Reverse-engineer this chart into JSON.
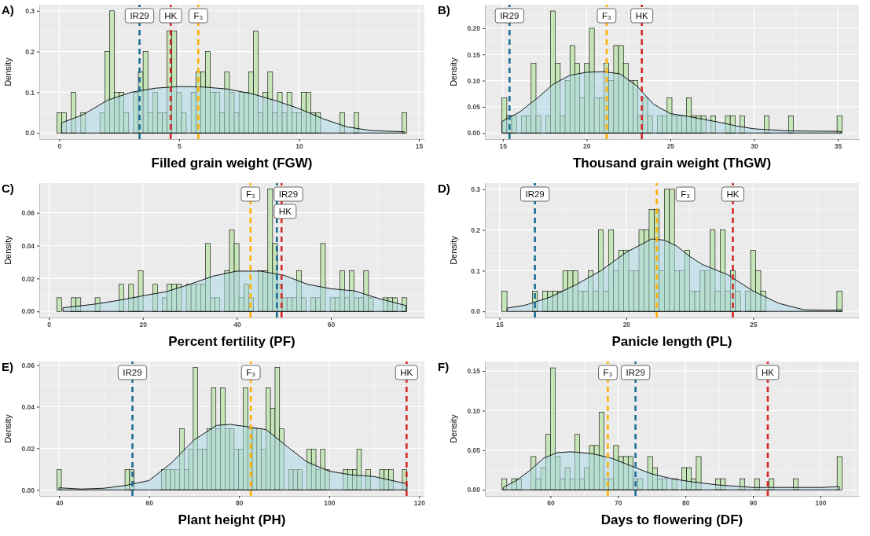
{
  "chart_data": [
    {
      "type": "histogram",
      "title": "A)",
      "xlabel": "Filled grain weight (FGW)",
      "ylabel": "Density",
      "color": "#c6e5b8",
      "grid": true,
      "xlim": [
        -0.83,
        15.23
      ],
      "xticks": [
        0,
        5,
        10,
        15
      ],
      "ylim": [
        -0.015,
        0.315
      ],
      "yticks": [
        {
          "value": 0,
          "label": "0.0"
        },
        0.1,
        0.2,
        0.3
      ],
      "bins": [
        -0.1,
        0.1,
        0.3,
        0.5,
        0.7,
        0.9,
        1.1,
        1.3,
        1.5,
        1.7,
        1.9,
        2.1,
        2.3,
        2.5,
        2.7,
        2.9,
        3.1,
        3.3,
        3.5,
        3.7,
        3.9,
        4.1,
        4.3,
        4.5,
        4.7,
        4.9,
        5.1,
        5.3,
        5.5,
        5.7,
        5.9,
        6.1,
        6.3,
        6.5,
        6.7,
        6.9,
        7.1,
        7.3,
        7.5,
        7.7,
        7.9,
        8.1,
        8.3,
        8.5,
        8.7,
        8.9,
        9.1,
        9.3,
        9.5,
        9.7,
        9.9,
        10.1,
        10.3,
        10.5,
        10.7,
        10.9,
        11.1,
        11.3,
        11.5,
        11.7,
        11.9,
        12.1,
        12.3,
        12.5,
        12.7,
        12.9,
        13.1,
        13.3,
        13.5,
        13.7,
        13.9,
        14.1,
        14.3,
        14.5
      ],
      "values": [
        0.05,
        0.05,
        0,
        0.1,
        0,
        0.05,
        0,
        0,
        0,
        0.05,
        0.2,
        0.3,
        0.1,
        0.1,
        0.05,
        0,
        0.1,
        0.15,
        0.2,
        0.05,
        0.1,
        0.05,
        0.05,
        0.25,
        0.25,
        0.1,
        0.05,
        0,
        0.1,
        0.15,
        0.15,
        0.2,
        0.1,
        0.1,
        0.05,
        0.15,
        0.1,
        0.05,
        0.1,
        0.1,
        0.15,
        0.25,
        0.05,
        0.1,
        0.15,
        0.05,
        0.1,
        0.05,
        0.1,
        0.05,
        0.05,
        0.1,
        0.1,
        0.05,
        0.05,
        0,
        0,
        0,
        0,
        0.05,
        0,
        0,
        0.05,
        0,
        0,
        0,
        0,
        0,
        0,
        0,
        0,
        0,
        0.05
      ],
      "series": [
        {
          "type": "area",
          "color": "#add8e6",
          "x": [
            0.1,
            1,
            2,
            3,
            4,
            5,
            6,
            7,
            8,
            9,
            10,
            11,
            12,
            13,
            14.4
          ],
          "values": [
            0.025,
            0.045,
            0.08,
            0.1,
            0.11,
            0.114,
            0.113,
            0.108,
            0.097,
            0.08,
            0.06,
            0.035,
            0.015,
            0.006,
            0.003
          ]
        }
      ],
      "ref_lines": [
        {
          "axis": "x",
          "value": 3.35,
          "label": "IR29",
          "color": "#1a6e96",
          "line_style": "dashed"
        },
        {
          "axis": "x",
          "value": 4.65,
          "label": "HK",
          "color": "#d62828",
          "line_style": "dashed"
        },
        {
          "axis": "x",
          "value": 5.8,
          "label": "F₃",
          "color": "#ffb000",
          "line_style": "dashed"
        }
      ]
    },
    {
      "type": "histogram",
      "title": "B)",
      "xlabel": "Thousand grain weight (ThGW)",
      "ylabel": "Density",
      "color": "#c6e5b8",
      "grid": true,
      "xlim": [
        13.93,
        36.27
      ],
      "xticks": [
        15,
        20,
        25,
        30,
        35
      ],
      "ylim": [
        -0.0117,
        0.245
      ],
      "yticks": [
        {
          "value": 0,
          "label": "0.00"
        },
        {
          "value": 0.05,
          "label": "0.05"
        },
        {
          "value": 0.1,
          "label": "0.10"
        },
        {
          "value": 0.15,
          "label": "0.15"
        },
        {
          "value": 0.2,
          "label": "0.20"
        }
      ],
      "bins": [
        14.95,
        15.24,
        15.53,
        15.82,
        16.11,
        16.4,
        16.69,
        16.98,
        17.27,
        17.56,
        17.85,
        18.14,
        18.43,
        18.72,
        19.01,
        19.3,
        19.59,
        19.88,
        20.17,
        20.46,
        20.75,
        21.04,
        21.33,
        21.62,
        21.91,
        22.2,
        22.49,
        22.78,
        23.07,
        23.36,
        23.65,
        23.94,
        24.23,
        24.52,
        24.81,
        25.1,
        25.39,
        25.68,
        25.97,
        26.26,
        26.55,
        26.84,
        27.13,
        27.42,
        27.71,
        28,
        28.29,
        28.58,
        28.87,
        29.16,
        29.45,
        29.74,
        30.03,
        30.32,
        30.61,
        30.9,
        31.19,
        31.48,
        31.77,
        32.06,
        32.35,
        32.64,
        32.93,
        33.22,
        33.51,
        33.8,
        34.09,
        34.38,
        34.67,
        34.96,
        35.25
      ],
      "values": [
        0.067,
        0.033,
        0.033,
        0,
        0.033,
        0.033,
        0.133,
        0.033,
        0,
        0.033,
        0.233,
        0.133,
        0.033,
        0.1,
        0.167,
        0.133,
        0.067,
        0.133,
        0.2,
        0.067,
        0.067,
        0.133,
        0.1,
        0.167,
        0.167,
        0.133,
        0.1,
        0.1,
        0.033,
        0.067,
        0.033,
        0,
        0.033,
        0.033,
        0.067,
        0.033,
        0.033,
        0.033,
        0.067,
        0.033,
        0.033,
        0.033,
        0,
        0.033,
        0,
        0,
        0.033,
        0.033,
        0,
        0.033,
        0,
        0,
        0,
        0,
        0.033,
        0,
        0,
        0,
        0,
        0.033,
        0,
        0,
        0,
        0,
        0,
        0,
        0,
        0,
        0,
        0.033
      ],
      "series": [
        {
          "type": "area",
          "color": "#add8e6",
          "x": [
            14.95,
            16,
            17,
            18,
            19,
            20,
            21,
            22,
            23,
            24,
            25,
            26,
            27,
            28,
            29,
            30,
            32,
            35.2
          ],
          "values": [
            0.022,
            0.04,
            0.065,
            0.093,
            0.11,
            0.116,
            0.117,
            0.113,
            0.09,
            0.055,
            0.037,
            0.032,
            0.026,
            0.02,
            0.013,
            0.008,
            0.004,
            0.003
          ]
        }
      ],
      "ref_lines": [
        {
          "axis": "x",
          "value": 15.4,
          "label": "IR29",
          "color": "#1a6e96",
          "line_style": "dashed"
        },
        {
          "axis": "x",
          "value": 21.2,
          "label": "F₃",
          "color": "#ffb000",
          "line_style": "dashed"
        },
        {
          "axis": "x",
          "value": 23.3,
          "label": "HK",
          "color": "#d62828",
          "line_style": "dashed"
        }
      ]
    },
    {
      "type": "histogram",
      "title": "C)",
      "xlabel": "Percent fertility (PF)",
      "ylabel": "Density",
      "color": "#c6e5b8",
      "grid": true,
      "xlim": [
        -2.02,
        79.88
      ],
      "xticks": [
        0,
        20,
        40,
        60
      ],
      "ylim": [
        -0.0037,
        0.078
      ],
      "yticks": [
        {
          "value": 0,
          "label": "0.00"
        },
        {
          "value": 0.02,
          "label": "0.02"
        },
        {
          "value": 0.04,
          "label": "0.04"
        },
        {
          "value": 0.06,
          "label": "0.06"
        }
      ],
      "bins": [
        1.7,
        2.72,
        3.74,
        4.76,
        5.78,
        6.8,
        7.82,
        8.84,
        9.86,
        10.88,
        11.9,
        12.92,
        13.94,
        14.96,
        15.98,
        17,
        18.02,
        19.04,
        20.06,
        21.08,
        22.1,
        23.12,
        24.14,
        25.16,
        26.18,
        27.2,
        28.22,
        29.24,
        30.26,
        31.28,
        32.3,
        33.32,
        34.34,
        35.36,
        36.38,
        37.4,
        38.42,
        39.44,
        40.46,
        41.48,
        42.5,
        43.52,
        44.54,
        45.56,
        46.58,
        47.6,
        48.62,
        49.64,
        50.66,
        51.68,
        52.7,
        53.72,
        54.74,
        55.76,
        56.78,
        57.8,
        58.82,
        59.84,
        60.86,
        61.88,
        62.9,
        63.92,
        64.94,
        65.96,
        66.98,
        68,
        69.02,
        70.04,
        71.06,
        72.08,
        73.1,
        74.12,
        75.14,
        76.16
      ],
      "values": [
        0.0083,
        0,
        0,
        0.0083,
        0.0083,
        0,
        0,
        0,
        0.0083,
        0,
        0,
        0,
        0,
        0.0165,
        0,
        0.0165,
        0.0083,
        0.0248,
        0,
        0,
        0.0165,
        0,
        0.0083,
        0.0165,
        0.0165,
        0.0165,
        0,
        0.0165,
        0.0165,
        0.0165,
        0.0165,
        0.0413,
        0.0083,
        0.0083,
        0,
        0.0248,
        0.0496,
        0.0413,
        0.0083,
        0.0165,
        0.0083,
        0,
        0.0248,
        0.0248,
        0.0744,
        0.0413,
        0.0165,
        0.0083,
        0.0083,
        0.0083,
        0.0248,
        0.0083,
        0,
        0.0083,
        0.0083,
        0.0413,
        0,
        0.0083,
        0.0083,
        0.0248,
        0.0083,
        0.0248,
        0.0083,
        0.0083,
        0.0248,
        0.0083,
        0,
        0,
        0.0083,
        0.0083,
        0.0083,
        0,
        0.0083
      ],
      "series": [
        {
          "type": "area",
          "color": "#add8e6",
          "x": [
            3,
            10,
            15,
            20,
            25,
            30,
            35,
            40,
            45,
            50,
            55,
            60,
            65,
            70,
            76
          ],
          "values": [
            0.0022,
            0.0045,
            0.0068,
            0.0095,
            0.012,
            0.0165,
            0.0215,
            0.0245,
            0.0245,
            0.022,
            0.0165,
            0.0138,
            0.0125,
            0.008,
            0.0035
          ]
        }
      ],
      "ref_lines": [
        {
          "axis": "x",
          "value": 42.9,
          "label": "F₃",
          "color": "#ffb000",
          "line_style": "dashed"
        },
        {
          "axis": "x",
          "value": 48.5,
          "label": "IR29",
          "color": "#1a6e96",
          "line_style": "dashed"
        },
        {
          "axis": "x",
          "value": 49.5,
          "label": "HK",
          "color": "#d62828",
          "line_style": "dashed"
        }
      ]
    },
    {
      "type": "histogram",
      "title": "D)",
      "xlabel": "Panicle length (PL)",
      "ylabel": "Density",
      "color": "#c6e5b8",
      "grid": true,
      "xlim": [
        14.43,
        29.17
      ],
      "xticks": [
        15,
        20,
        25
      ],
      "ylim": [
        -0.015,
        0.315
      ],
      "yticks": [
        {
          "value": 0,
          "label": "0.0"
        },
        0.1,
        0.2,
        0.3
      ],
      "bins": [
        15.1,
        15.3,
        15.5,
        15.7,
        15.9,
        16.1,
        16.3,
        16.5,
        16.7,
        16.9,
        17.1,
        17.3,
        17.5,
        17.7,
        17.9,
        18.1,
        18.3,
        18.5,
        18.7,
        18.9,
        19.1,
        19.3,
        19.5,
        19.7,
        19.9,
        20.1,
        20.3,
        20.5,
        20.7,
        20.9,
        21.1,
        21.3,
        21.5,
        21.7,
        21.9,
        22.1,
        22.3,
        22.5,
        22.7,
        22.9,
        23.1,
        23.3,
        23.5,
        23.7,
        23.9,
        24.1,
        24.3,
        24.5,
        24.7,
        24.9,
        25.1,
        25.3,
        25.5,
        25.7,
        25.9,
        26.1,
        26.3,
        26.5,
        26.7,
        26.9,
        27.1,
        27.3,
        27.5,
        27.7,
        27.9,
        28.1,
        28.3,
        28.5
      ],
      "values": [
        0.05,
        0,
        0,
        0,
        0,
        0,
        0.05,
        0,
        0.05,
        0.05,
        0.05,
        0.05,
        0.1,
        0.1,
        0.1,
        0.05,
        0.05,
        0.1,
        0.05,
        0.2,
        0.05,
        0.2,
        0.1,
        0.15,
        0.15,
        0.1,
        0.1,
        0.2,
        0.2,
        0.25,
        0.25,
        0.1,
        0.3,
        0.3,
        0.1,
        0.1,
        0.15,
        0.05,
        0.05,
        0.1,
        0.1,
        0.2,
        0.05,
        0.2,
        0.05,
        0.1,
        0.05,
        0,
        0.05,
        0.15,
        0.1,
        0.05,
        0,
        0,
        0,
        0,
        0,
        0,
        0,
        0,
        0,
        0,
        0,
        0,
        0,
        0,
        0.05
      ],
      "series": [
        {
          "type": "area",
          "color": "#add8e6",
          "x": [
            15.3,
            16,
            17,
            18,
            19,
            20,
            21,
            21.5,
            22,
            22.5,
            23,
            24,
            25,
            26,
            27,
            28,
            28.5
          ],
          "values": [
            0.008,
            0.015,
            0.035,
            0.065,
            0.1,
            0.145,
            0.178,
            0.175,
            0.16,
            0.135,
            0.115,
            0.09,
            0.05,
            0.02,
            0.004,
            0.003,
            0.004
          ]
        }
      ],
      "ref_lines": [
        {
          "axis": "x",
          "value": 16.4,
          "label": "IR29",
          "color": "#1a6e96",
          "line_style": "dashed"
        },
        {
          "axis": "x",
          "value": 21.2,
          "label": "F₃",
          "color": "#ffb000",
          "line_style": "dashed"
        },
        {
          "axis": "x",
          "value": 24.2,
          "label": "HK",
          "color": "#d62828",
          "line_style": "dashed"
        }
      ]
    },
    {
      "type": "histogram",
      "title": "E)",
      "xlabel": "Plant height (PH)",
      "ylabel": "Density",
      "color": "#c6e5b8",
      "grid": true,
      "xlim": [
        35.61,
        121.16
      ],
      "xticks": [
        40,
        60,
        80,
        100,
        120
      ],
      "ylim": [
        -0.0029,
        0.0617
      ],
      "yticks": [
        {
          "value": 0,
          "label": "0.00"
        },
        {
          "value": 0.02,
          "label": "0.02"
        },
        {
          "value": 0.04,
          "label": "0.04"
        },
        {
          "value": 0.06,
          "label": "0.06"
        }
      ],
      "bins": [
        39.5,
        40.51,
        41.52,
        42.53,
        43.54,
        44.55,
        45.56,
        46.57,
        47.58,
        48.59,
        49.6,
        50.61,
        51.62,
        52.63,
        53.64,
        54.65,
        55.66,
        56.67,
        57.68,
        58.69,
        59.7,
        60.71,
        61.72,
        62.73,
        63.74,
        64.75,
        65.76,
        66.77,
        67.78,
        68.79,
        69.8,
        70.81,
        71.82,
        72.83,
        73.84,
        74.85,
        75.86,
        76.87,
        77.88,
        78.89,
        79.9,
        80.91,
        81.92,
        82.93,
        83.94,
        84.95,
        85.96,
        86.97,
        87.98,
        88.99,
        90,
        91.01,
        92.02,
        93.03,
        94.04,
        95.05,
        96.06,
        97.07,
        98.08,
        99.09,
        100.1,
        101.11,
        102.12,
        103.13,
        104.14,
        105.15,
        106.16,
        107.17,
        108.18,
        109.19,
        110.2,
        111.21,
        112.22,
        113.23,
        114.24,
        115.25,
        116.26,
        117.27
      ],
      "values": [
        0.0098,
        0,
        0,
        0,
        0,
        0,
        0,
        0,
        0,
        0,
        0,
        0,
        0,
        0,
        0,
        0.0098,
        0.0098,
        0,
        0,
        0,
        0,
        0,
        0,
        0.0098,
        0.0098,
        0.0098,
        0.0098,
        0.0294,
        0.0098,
        0.0196,
        0.0588,
        0.0196,
        0.0196,
        0.0294,
        0.049,
        0.0294,
        0.049,
        0.0294,
        0.0294,
        0.0196,
        0.0196,
        0.049,
        0.0294,
        0.0294,
        0.0294,
        0.0196,
        0.049,
        0.0392,
        0.0588,
        0.0294,
        0,
        0.0098,
        0.0098,
        0.0098,
        0,
        0.0196,
        0.0196,
        0.0098,
        0.0196,
        0.0098,
        0,
        0,
        0,
        0.0098,
        0.0098,
        0.0098,
        0.0196,
        0,
        0.0098,
        0,
        0,
        0.0098,
        0.0098,
        0.0098,
        0,
        0,
        0.0098
      ],
      "series": [
        {
          "type": "area",
          "color": "#add8e6",
          "x": [
            40,
            45,
            50,
            55,
            60,
            65,
            70,
            75,
            78,
            82,
            86,
            90,
            95,
            100,
            105,
            110,
            115,
            117.3
          ],
          "values": [
            0.001,
            0.0004,
            0.0008,
            0.0022,
            0.0045,
            0.013,
            0.024,
            0.031,
            0.0315,
            0.0303,
            0.029,
            0.022,
            0.0135,
            0.009,
            0.0072,
            0.0064,
            0.004,
            0.003
          ]
        }
      ],
      "ref_lines": [
        {
          "axis": "x",
          "value": 56.3,
          "label": "IR29",
          "color": "#1a6e96",
          "line_style": "dashed"
        },
        {
          "axis": "x",
          "value": 82.6,
          "label": "F₃",
          "color": "#ffb000",
          "line_style": "dashed"
        },
        {
          "axis": "x",
          "value": 117.2,
          "label": "HK",
          "color": "#d62828",
          "line_style": "dashed"
        }
      ]
    },
    {
      "type": "histogram",
      "title": "F)",
      "xlabel": "Days to flowering (DF)",
      "ylabel": "Density",
      "color": "#c6e5b8",
      "grid": true,
      "xlim": [
        50.28,
        105.72
      ],
      "xticks": [
        60,
        70,
        80,
        90,
        100
      ],
      "ylim": [
        -0.0077,
        0.162
      ],
      "yticks": [
        {
          "value": 0,
          "label": "0.00"
        },
        {
          "value": 0.05,
          "label": "0.05"
        },
        {
          "value": 0.1,
          "label": "0.10"
        },
        {
          "value": 0.15,
          "label": "0.15"
        }
      ],
      "bins": [
        52.8,
        53.52,
        54.24,
        54.96,
        55.68,
        56.4,
        57.12,
        57.84,
        58.56,
        59.28,
        60,
        60.72,
        61.44,
        62.16,
        62.88,
        63.6,
        64.32,
        65.04,
        65.76,
        66.48,
        67.2,
        67.92,
        68.64,
        69.36,
        70.08,
        70.8,
        71.52,
        72.24,
        72.96,
        73.68,
        74.4,
        75.12,
        75.84,
        76.56,
        77.28,
        78,
        78.72,
        79.44,
        80.16,
        80.88,
        81.6,
        82.32,
        83.04,
        83.76,
        84.48,
        85.2,
        85.92,
        86.64,
        87.36,
        88.08,
        88.8,
        89.52,
        90.24,
        90.96,
        91.68,
        92.4,
        93.12,
        93.84,
        94.56,
        95.28,
        96,
        96.72,
        97.44,
        98.16,
        98.88,
        99.6,
        100.32,
        101.04,
        101.76,
        102.48,
        103.2
      ],
      "values": [
        0.014,
        0,
        0.014,
        0.014,
        0,
        0,
        0.042,
        0.014,
        0.028,
        0.07,
        0.154,
        0.042,
        0.014,
        0.028,
        0.014,
        0.07,
        0.014,
        0.028,
        0.056,
        0.056,
        0.098,
        0.014,
        0.014,
        0.056,
        0.042,
        0.042,
        0.042,
        0.014,
        0.014,
        0,
        0.042,
        0.028,
        0.014,
        0.014,
        0,
        0.014,
        0,
        0.028,
        0.028,
        0.014,
        0.042,
        0,
        0,
        0,
        0.014,
        0.014,
        0,
        0,
        0,
        0.014,
        0,
        0,
        0.014,
        0,
        0,
        0.014,
        0,
        0,
        0,
        0,
        0.014,
        0,
        0,
        0,
        0,
        0,
        0,
        0,
        0,
        0.042
      ],
      "series": [
        {
          "type": "area",
          "color": "#add8e6",
          "x": [
            53,
            55,
            57,
            59,
            61,
            63,
            66,
            69,
            72,
            75,
            78,
            81,
            85,
            90,
            95,
            100,
            102.8
          ],
          "values": [
            0.003,
            0.012,
            0.025,
            0.04,
            0.047,
            0.048,
            0.046,
            0.04,
            0.03,
            0.02,
            0.014,
            0.01,
            0.006,
            0.003,
            0.003,
            0.003,
            0.004
          ]
        }
      ],
      "ref_lines": [
        {
          "axis": "x",
          "value": 68.5,
          "label": "F₃",
          "color": "#ffb000",
          "line_style": "dashed"
        },
        {
          "axis": "x",
          "value": 72.6,
          "label": "IR29",
          "color": "#1a6e96",
          "line_style": "dashed"
        },
        {
          "axis": "x",
          "value": 92.2,
          "label": "HK",
          "color": "#d62828",
          "line_style": "dashed"
        }
      ]
    }
  ]
}
